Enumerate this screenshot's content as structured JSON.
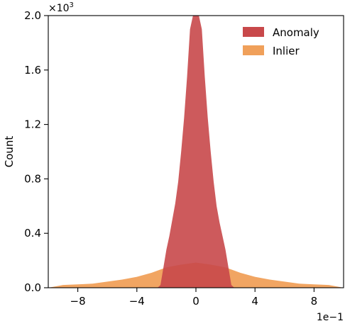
{
  "chart_data": {
    "type": "histogram",
    "xlabel": "",
    "ylabel": "Count",
    "x_offset_text": "1e−1",
    "y_offset_text": "×10",
    "y_offset_exponent": "3",
    "xlim": [
      -10,
      10
    ],
    "ylim": [
      0,
      2.0
    ],
    "x_ticks": [
      -8,
      -4,
      0,
      4,
      8
    ],
    "x_tick_labels": [
      "−8",
      "−4",
      "0",
      "4",
      "8"
    ],
    "y_ticks": [
      0.0,
      0.4,
      0.8,
      1.2,
      1.6,
      2.0
    ],
    "y_tick_labels": [
      "0.0",
      "0.4",
      "0.8",
      "1.2",
      "1.6",
      "2.0"
    ],
    "legend_position": "top-right",
    "series": [
      {
        "name": "Anomaly",
        "color": "#c8484a",
        "x": [
          -10,
          -2.6,
          -2.4,
          -2.2,
          -2.0,
          -1.8,
          -1.6,
          -1.4,
          -1.2,
          -1.0,
          -0.8,
          -0.6,
          -0.4,
          -0.2,
          0.0,
          0.2,
          0.4,
          0.6,
          0.8,
          1.0,
          1.2,
          1.4,
          1.6,
          1.8,
          2.0,
          2.2,
          2.4,
          2.6,
          10
        ],
        "values": [
          0,
          0,
          0.02,
          0.15,
          0.28,
          0.38,
          0.5,
          0.62,
          0.78,
          1.0,
          1.25,
          1.55,
          1.9,
          2.0,
          2.0,
          2.0,
          1.9,
          1.55,
          1.25,
          1.0,
          0.78,
          0.6,
          0.48,
          0.38,
          0.28,
          0.15,
          0.02,
          0,
          0
        ]
      },
      {
        "name": "Inlier",
        "color": "#f0a05a",
        "x": [
          -10,
          -9,
          -8,
          -7,
          -6,
          -5,
          -4,
          -3,
          -2,
          -1,
          0,
          1,
          2,
          3,
          4,
          5,
          6,
          7,
          8,
          9,
          10
        ],
        "values": [
          0.0,
          0.02,
          0.025,
          0.03,
          0.045,
          0.06,
          0.08,
          0.11,
          0.15,
          0.17,
          0.185,
          0.17,
          0.15,
          0.11,
          0.08,
          0.06,
          0.045,
          0.03,
          0.025,
          0.02,
          0.0
        ]
      }
    ]
  }
}
